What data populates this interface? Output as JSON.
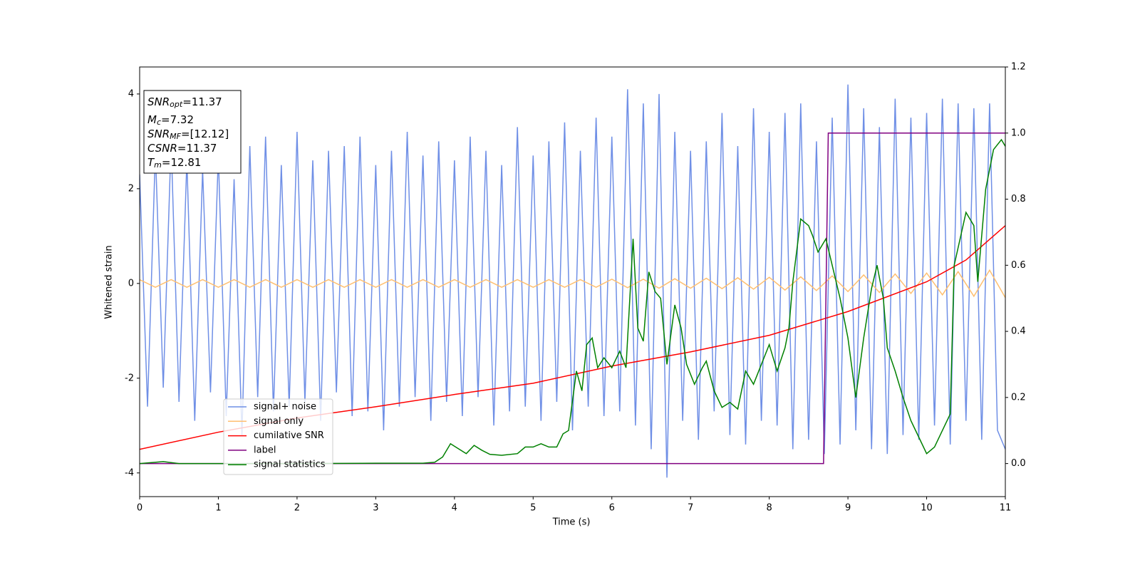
{
  "chart_data": {
    "type": "line",
    "xlabel": "Time (s)",
    "ylabel": "Whitened strain",
    "xlim": [
      0,
      11
    ],
    "ylim": [
      -4.5,
      4.57
    ],
    "y2lim": [
      -0.1,
      1.2
    ],
    "xticks": [
      0,
      1,
      2,
      3,
      4,
      5,
      6,
      7,
      8,
      9,
      10,
      11
    ],
    "yticks": [
      -4,
      -2,
      0,
      2,
      4
    ],
    "y2ticks": [
      {
        "value": 0,
        "label": "0.0"
      },
      0.2,
      0.4,
      0.6,
      0.8,
      {
        "value": 1,
        "label": "1.0"
      },
      1.2
    ],
    "annotations": [
      {
        "name": "SNR",
        "sub": "opt",
        "text": "=11.37"
      },
      {
        "name": "M",
        "sub": "c",
        "text": "=7.32"
      },
      {
        "name": "SNR",
        "sub": "MF",
        "text": "=[12.12]"
      },
      {
        "name": "CSNR",
        "text": "=11.37"
      },
      {
        "name": "T",
        "sub": "m",
        "text": "=12.81"
      }
    ],
    "series": [
      {
        "name": "signal+ noise",
        "color": "#6f8fe6",
        "x": [
          0,
          0.1,
          0.2,
          0.3,
          0.4,
          0.5,
          0.6,
          0.7,
          0.8,
          0.9,
          1,
          1.1,
          1.2,
          1.3,
          1.4,
          1.5,
          1.6,
          1.7,
          1.8,
          1.9,
          2,
          2.1,
          2.2,
          2.3,
          2.4,
          2.5,
          2.6,
          2.7,
          2.8,
          2.9,
          3,
          3.1,
          3.2,
          3.3,
          3.4,
          3.5,
          3.6,
          3.7,
          3.8,
          3.9,
          4,
          4.1,
          4.2,
          4.3,
          4.4,
          4.5,
          4.6,
          4.7,
          4.8,
          4.9,
          5,
          5.1,
          5.2,
          5.3,
          5.4,
          5.5,
          5.6,
          5.7,
          5.8,
          5.9,
          6,
          6.1,
          6.2,
          6.3,
          6.4,
          6.5,
          6.6,
          6.7,
          6.8,
          6.9,
          7,
          7.1,
          7.2,
          7.3,
          7.4,
          7.5,
          7.6,
          7.7,
          7.8,
          7.9,
          8,
          8.1,
          8.2,
          8.3,
          8.4,
          8.5,
          8.6,
          8.7,
          8.8,
          8.9,
          9,
          9.1,
          9.2,
          9.3,
          9.4,
          9.5,
          9.6,
          9.7,
          9.8,
          9.9,
          10,
          10.1,
          10.2,
          10.3,
          10.4,
          10.5,
          10.6,
          10.7,
          10.8,
          10.9,
          11
        ],
        "values": [
          2.3,
          -2.6,
          2.8,
          -2.2,
          3.0,
          -2.5,
          2.6,
          -2.9,
          2.4,
          -2.3,
          2.7,
          -2.8,
          2.2,
          -3.2,
          2.9,
          -2.4,
          3.1,
          -2.7,
          2.5,
          -2.6,
          3.2,
          -2.5,
          2.6,
          -2.9,
          2.8,
          -2.3,
          2.9,
          -2.8,
          3.1,
          -2.7,
          2.5,
          -3.1,
          2.8,
          -2.6,
          3.2,
          -2.4,
          2.7,
          -2.9,
          3.0,
          -2.5,
          2.6,
          -2.8,
          3.1,
          -2.4,
          2.8,
          -3.0,
          2.5,
          -2.7,
          3.3,
          -2.6,
          2.7,
          -2.9,
          3.0,
          -2.5,
          3.4,
          -3.1,
          2.8,
          -2.6,
          3.5,
          -2.8,
          3.1,
          -2.7,
          4.1,
          -3.0,
          3.8,
          -3.5,
          4.0,
          -4.1,
          3.2,
          -2.9,
          2.8,
          -3.3,
          3.0,
          -2.7,
          3.6,
          -3.2,
          2.9,
          -3.4,
          3.7,
          -2.9,
          3.2,
          -3.0,
          3.6,
          -3.5,
          3.8,
          -3.3,
          3.0,
          -3.6,
          3.5,
          -3.4,
          4.2,
          -3.1,
          3.7,
          -3.5,
          3.3,
          -3.6,
          3.9,
          -3.2,
          3.5,
          -3.3,
          3.6,
          -3.0,
          3.9,
          -3.4,
          3.8,
          -2.9,
          3.7,
          -3.3,
          3.8,
          -3.1,
          -3.5
        ]
      },
      {
        "name": "signal only",
        "color": "#ffbf70",
        "x": [
          0,
          0.2,
          0.4,
          0.6,
          0.8,
          1,
          1.2,
          1.4,
          1.6,
          1.8,
          2,
          2.2,
          2.4,
          2.6,
          2.8,
          3,
          3.2,
          3.4,
          3.6,
          3.8,
          4,
          4.2,
          4.4,
          4.6,
          4.8,
          5,
          5.2,
          5.4,
          5.6,
          5.8,
          6,
          6.2,
          6.4,
          6.6,
          6.8,
          7,
          7.2,
          7.4,
          7.6,
          7.8,
          8,
          8.2,
          8.4,
          8.6,
          8.8,
          9,
          9.2,
          9.4,
          9.6,
          9.8,
          10,
          10.2,
          10.4,
          10.6,
          10.8,
          11
        ],
        "values": [
          0.08,
          -0.08,
          0.08,
          -0.08,
          0.08,
          -0.08,
          0.08,
          -0.08,
          0.08,
          -0.08,
          0.08,
          -0.08,
          0.08,
          -0.08,
          0.08,
          -0.08,
          0.08,
          -0.08,
          0.08,
          -0.08,
          0.08,
          -0.08,
          0.08,
          -0.08,
          0.08,
          -0.08,
          0.08,
          -0.08,
          0.08,
          -0.08,
          0.09,
          -0.09,
          0.09,
          -0.1,
          0.1,
          -0.1,
          0.11,
          -0.11,
          0.12,
          -0.12,
          0.13,
          -0.14,
          0.14,
          -0.15,
          0.16,
          -0.17,
          0.18,
          -0.19,
          0.2,
          -0.21,
          0.22,
          -0.24,
          0.25,
          -0.27,
          0.28,
          -0.3
        ]
      },
      {
        "name": "cumilative SNR",
        "color": "#ff0000",
        "axis": "y2",
        "x": [
          0,
          1,
          2,
          3,
          4,
          5,
          6,
          7,
          8,
          9,
          10,
          10.5,
          11
        ],
        "values": [
          0.043,
          0.095,
          0.138,
          0.172,
          0.209,
          0.243,
          0.295,
          0.338,
          0.388,
          0.46,
          0.55,
          0.616,
          0.72
        ]
      },
      {
        "name": "label",
        "color": "#800080",
        "axis": "y2",
        "x": [
          0,
          8.69,
          8.75,
          11
        ],
        "values": [
          0,
          0,
          1,
          1
        ]
      },
      {
        "name": "signal statistics",
        "color": "#008000",
        "axis": "y2",
        "x": [
          0,
          0.3,
          0.5,
          1,
          2,
          3,
          3.6,
          3.75,
          3.85,
          3.95,
          4.05,
          4.15,
          4.25,
          4.35,
          4.45,
          4.6,
          4.8,
          4.9,
          5,
          5.1,
          5.2,
          5.3,
          5.38,
          5.45,
          5.55,
          5.62,
          5.68,
          5.75,
          5.82,
          5.9,
          6,
          6.1,
          6.18,
          6.27,
          6.33,
          6.4,
          6.47,
          6.55,
          6.62,
          6.7,
          6.8,
          6.88,
          6.95,
          7.05,
          7.15,
          7.2,
          7.3,
          7.4,
          7.5,
          7.6,
          7.7,
          7.8,
          7.9,
          8,
          8.1,
          8.2,
          8.25,
          8.3,
          8.4,
          8.5,
          8.55,
          8.62,
          8.72,
          8.8,
          8.9,
          9,
          9.1,
          9.2,
          9.3,
          9.37,
          9.45,
          9.5,
          9.6,
          9.7,
          9.8,
          9.9,
          10,
          10.1,
          10.2,
          10.3,
          10.35,
          10.5,
          10.6,
          10.65,
          10.75,
          10.85,
          10.95,
          11
        ],
        "values": [
          0,
          0.006,
          0,
          0,
          0,
          0.001,
          0.001,
          0.004,
          0.02,
          0.06,
          0.045,
          0.03,
          0.055,
          0.04,
          0.028,
          0.025,
          0.03,
          0.05,
          0.05,
          0.06,
          0.05,
          0.05,
          0.09,
          0.1,
          0.28,
          0.22,
          0.36,
          0.38,
          0.29,
          0.32,
          0.29,
          0.34,
          0.29,
          0.68,
          0.41,
          0.37,
          0.58,
          0.52,
          0.5,
          0.3,
          0.48,
          0.41,
          0.3,
          0.24,
          0.29,
          0.31,
          0.22,
          0.17,
          0.185,
          0.165,
          0.28,
          0.24,
          0.3,
          0.36,
          0.28,
          0.35,
          0.41,
          0.55,
          0.74,
          0.72,
          0.69,
          0.64,
          0.68,
          0.6,
          0.5,
          0.38,
          0.2,
          0.38,
          0.53,
          0.6,
          0.5,
          0.35,
          0.28,
          0.2,
          0.13,
          0.08,
          0.03,
          0.05,
          0.1,
          0.15,
          0.6,
          0.76,
          0.72,
          0.55,
          0.83,
          0.95,
          0.98,
          0.96
        ]
      }
    ]
  }
}
